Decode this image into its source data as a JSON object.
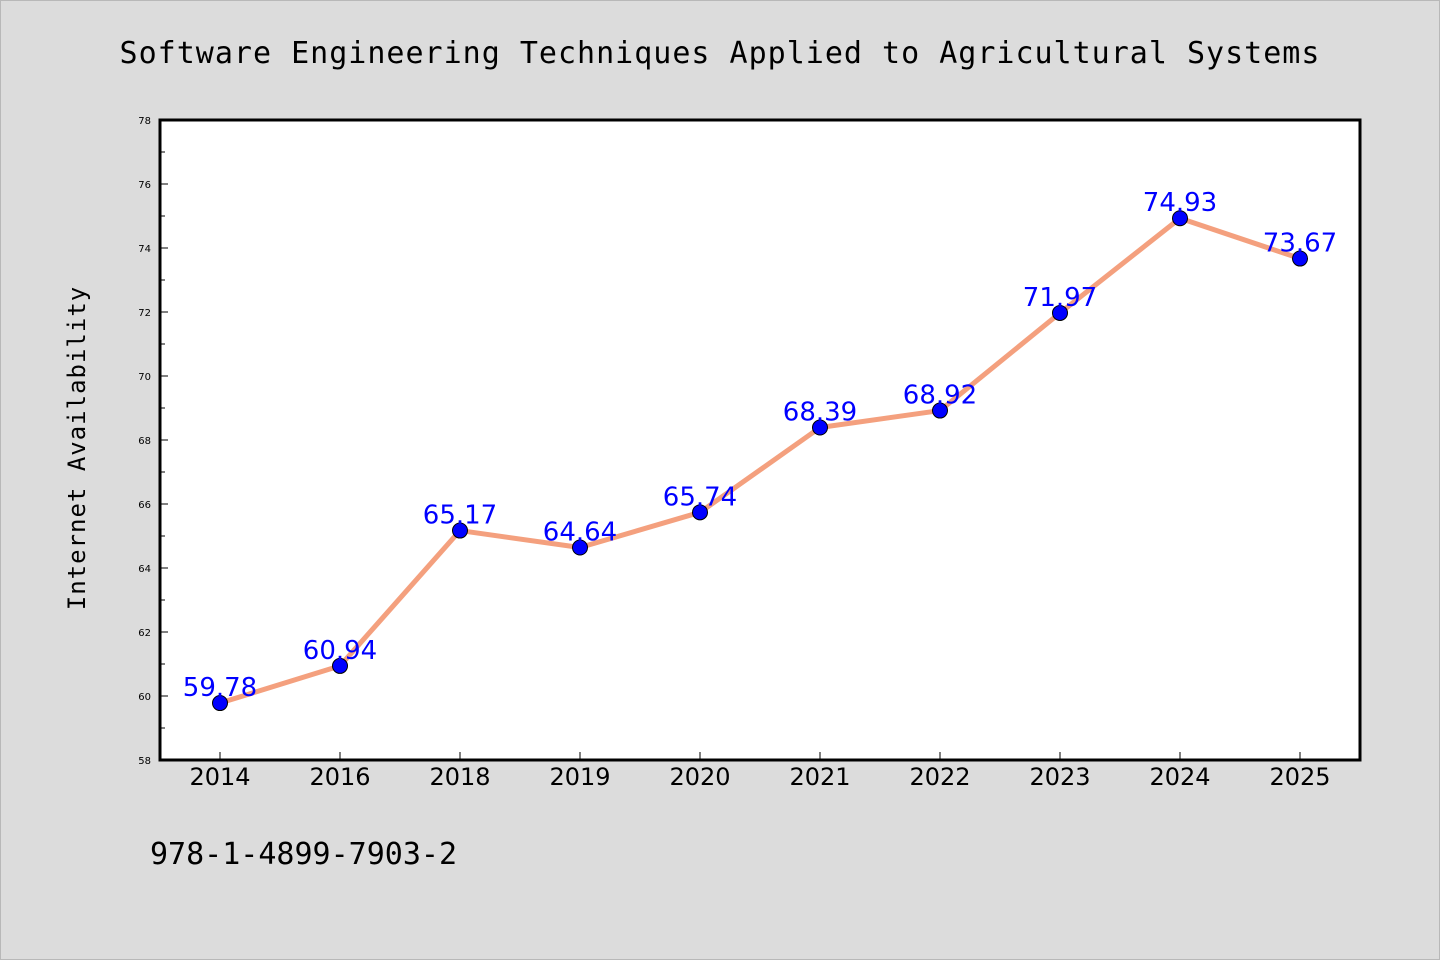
{
  "chart_data": {
    "type": "line",
    "title": "Software Engineering Techniques Applied to Agricultural Systems",
    "xlabel": "",
    "ylabel": "Internet Availability",
    "categories": [
      "2014",
      "2016",
      "2018",
      "2019",
      "2020",
      "2021",
      "2022",
      "2023",
      "2024",
      "2025"
    ],
    "series": [
      {
        "values": [
          59.78,
          60.94,
          65.17,
          64.64,
          65.74,
          68.39,
          68.92,
          71.97,
          74.93,
          73.67
        ]
      }
    ],
    "data_labels": [
      "59.78",
      "60.94",
      "65.17",
      "64.64",
      "65.74",
      "68.39",
      "68.92",
      "71.97",
      "74.93",
      "73.67"
    ],
    "ylim": [
      58,
      78
    ],
    "yticks": [
      58,
      60,
      62,
      64,
      66,
      68,
      70,
      72,
      74,
      76,
      78
    ],
    "ytick_labels": [
      "58",
      "60",
      "62",
      "64",
      "66",
      "68",
      "70",
      "72",
      "74",
      "76",
      "78"
    ],
    "grid": false,
    "colors": {
      "line": "#f4a07e",
      "marker": "#0000ff",
      "data_label": "#0000ff",
      "background": "#dcdcdc",
      "plot_background": "#ffffff"
    }
  },
  "footer": {
    "isbn": "978-1-4899-7903-2"
  }
}
